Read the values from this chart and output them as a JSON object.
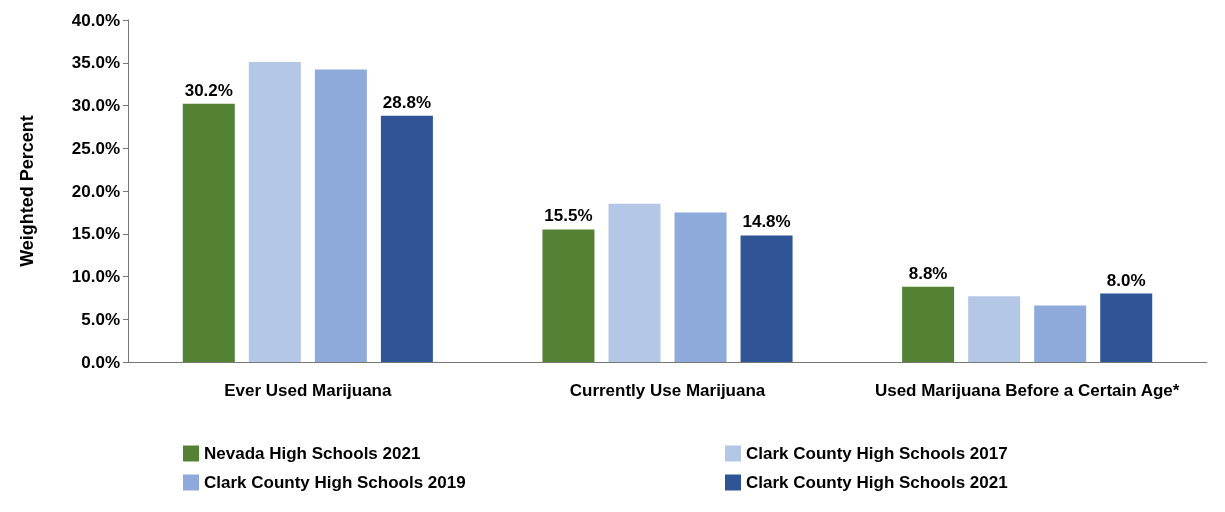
{
  "chart_data": {
    "type": "bar",
    "ylabel": "Weighted Percent",
    "categories": [
      "Ever Used Marijuana",
      "Currently Use Marijuana",
      "Used Marijuana Before a Certain Age*"
    ],
    "series": [
      {
        "name": "Nevada High Schools 2021",
        "color": "#548235",
        "values": [
          30.2,
          15.5,
          8.8
        ],
        "value_labels": [
          "30.2%",
          "15.5%",
          "8.8%"
        ]
      },
      {
        "name": "Clark County High Schools 2017",
        "color": "#b4c7e7",
        "values": [
          35.1,
          18.5,
          7.7
        ]
      },
      {
        "name": "Clark County High Schools 2019",
        "color": "#8eaadb",
        "values": [
          34.2,
          17.5,
          6.6
        ]
      },
      {
        "name": "Clark County High Schools 2021",
        "color": "#2f5597",
        "values": [
          28.8,
          14.8,
          8.0
        ],
        "value_labels": [
          "28.8%",
          "14.8%",
          "8.0%"
        ]
      }
    ],
    "ylim": [
      0,
      40
    ],
    "yticks": [
      {
        "value": 0,
        "label": "0.0%"
      },
      {
        "value": 5,
        "label": "5.0%"
      },
      {
        "value": 10,
        "label": "10.0%"
      },
      {
        "value": 15,
        "label": "15.0%"
      },
      {
        "value": 20,
        "label": "20.0%"
      },
      {
        "value": 25,
        "label": "25.0%"
      },
      {
        "value": 30,
        "label": "30.0%"
      },
      {
        "value": 35,
        "label": "35.0%"
      },
      {
        "value": 40,
        "label": "40.0%"
      }
    ],
    "grid": false,
    "legend": "bottom"
  }
}
